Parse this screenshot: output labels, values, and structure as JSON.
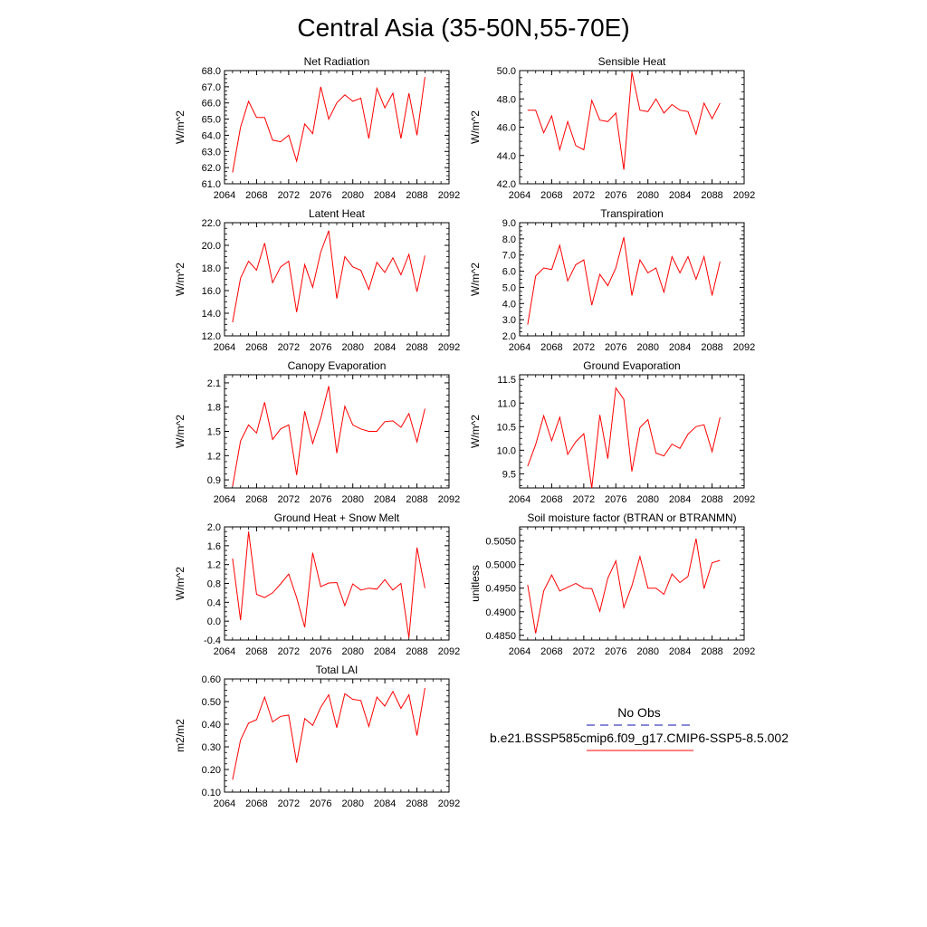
{
  "title": "Central Asia (35-50N,55-70E)",
  "xticks": [
    "2064",
    "2068",
    "2072",
    "2076",
    "2080",
    "2084",
    "2088",
    "2092"
  ],
  "years": [
    2065,
    2066,
    2067,
    2068,
    2069,
    2070,
    2071,
    2072,
    2073,
    2074,
    2075,
    2076,
    2077,
    2078,
    2079,
    2080,
    2081,
    2082,
    2083,
    2084,
    2085,
    2086,
    2087,
    2088,
    2089
  ],
  "legend": {
    "obs_label": "No Obs",
    "obs_color": "#4040c0",
    "model_label": "b.e21.BSSP585cmip6.f09_g17.CMIP6-SSP5-8.5.002",
    "model_color": "#ff0000"
  },
  "chart_data": [
    {
      "type": "line",
      "title": "Net Radiation",
      "ylabel": "W/m^2",
      "xlim": [
        2064,
        2092
      ],
      "ylim": [
        61.0,
        68.0
      ],
      "yticks": [
        "61.0",
        "62.0",
        "63.0",
        "64.0",
        "65.0",
        "66.0",
        "67.0",
        "68.0"
      ],
      "series": [
        {
          "values": [
            61.7,
            64.5,
            66.1,
            65.1,
            65.1,
            63.7,
            63.6,
            64.0,
            62.4,
            64.7,
            64.1,
            67.0,
            65.0,
            66.0,
            66.5,
            66.1,
            66.3,
            63.8,
            66.9,
            65.7,
            66.6,
            63.8,
            66.6,
            64.0,
            67.6
          ]
        }
      ]
    },
    {
      "type": "line",
      "title": "Sensible Heat",
      "ylabel": "W/m^2",
      "xlim": [
        2064,
        2092
      ],
      "ylim": [
        42.0,
        50.0
      ],
      "yticks": [
        "42.0",
        "44.0",
        "46.0",
        "48.0",
        "50.0"
      ],
      "series": [
        {
          "values": [
            47.2,
            47.2,
            45.6,
            46.8,
            44.4,
            46.4,
            44.7,
            44.4,
            47.9,
            46.5,
            46.4,
            47.0,
            43.0,
            49.9,
            47.2,
            47.1,
            48.0,
            47.0,
            47.6,
            47.2,
            47.1,
            45.5,
            47.7,
            46.6,
            47.7
          ]
        }
      ]
    },
    {
      "type": "line",
      "title": "Latent Heat",
      "ylabel": "W/m^2",
      "xlim": [
        2064,
        2092
      ],
      "ylim": [
        12.0,
        22.0
      ],
      "yticks": [
        "12.0",
        "14.0",
        "16.0",
        "18.0",
        "20.0",
        "22.0"
      ],
      "series": [
        {
          "values": [
            13.2,
            17.1,
            18.6,
            17.8,
            20.2,
            16.7,
            18.1,
            18.6,
            14.1,
            18.3,
            16.3,
            19.4,
            21.3,
            15.3,
            19.0,
            18.1,
            17.8,
            16.1,
            18.5,
            17.6,
            18.9,
            17.4,
            19.2,
            15.9,
            19.1
          ]
        }
      ]
    },
    {
      "type": "line",
      "title": "Transpiration",
      "ylabel": "W/m^2",
      "xlim": [
        2064,
        2092
      ],
      "ylim": [
        2.0,
        9.0
      ],
      "yticks": [
        "2.0",
        "3.0",
        "4.0",
        "5.0",
        "6.0",
        "7.0",
        "8.0",
        "9.0"
      ],
      "series": [
        {
          "values": [
            2.7,
            5.7,
            6.2,
            6.1,
            7.6,
            5.4,
            6.4,
            6.7,
            3.9,
            5.8,
            5.1,
            6.2,
            8.1,
            4.5,
            6.7,
            5.9,
            6.2,
            4.7,
            6.9,
            5.9,
            6.9,
            5.5,
            6.9,
            4.5,
            6.6
          ]
        }
      ]
    },
    {
      "type": "line",
      "title": "Canopy Evaporation",
      "ylabel": "W/m^2",
      "xlim": [
        2064,
        2092
      ],
      "ylim": [
        0.8,
        2.2
      ],
      "yticks": [
        "0.9",
        "1.2",
        "1.5",
        "1.8",
        "2.1"
      ],
      "series": [
        {
          "values": [
            0.82,
            1.38,
            1.58,
            1.48,
            1.86,
            1.4,
            1.53,
            1.58,
            0.96,
            1.75,
            1.35,
            1.66,
            2.06,
            1.23,
            1.81,
            1.58,
            1.53,
            1.5,
            1.5,
            1.62,
            1.63,
            1.55,
            1.72,
            1.37,
            1.78
          ]
        }
      ]
    },
    {
      "type": "line",
      "title": "Ground Evaporation",
      "ylabel": "W/m^2",
      "xlim": [
        2064,
        2092
      ],
      "ylim": [
        9.2,
        11.6
      ],
      "yticks": [
        "9.5",
        "10.0",
        "10.5",
        "11.0",
        "11.5"
      ],
      "series": [
        {
          "values": [
            9.66,
            10.12,
            10.73,
            10.2,
            10.7,
            9.91,
            10.18,
            10.35,
            9.2,
            10.75,
            9.82,
            11.32,
            11.08,
            9.55,
            10.48,
            10.65,
            9.94,
            9.88,
            10.13,
            10.04,
            10.34,
            10.5,
            10.54,
            9.97,
            10.7
          ]
        }
      ]
    },
    {
      "type": "line",
      "title": "Ground Heat + Snow Melt",
      "ylabel": "W/m^2",
      "xlim": [
        2064,
        2092
      ],
      "ylim": [
        -0.4,
        2.0
      ],
      "yticks": [
        "-0.4",
        "0.0",
        "0.4",
        "0.8",
        "1.2",
        "1.6",
        "2.0"
      ],
      "series": [
        {
          "values": [
            1.33,
            0.02,
            1.9,
            0.57,
            0.5,
            0.6,
            0.79,
            1.0,
            0.5,
            -0.13,
            1.45,
            0.73,
            0.81,
            0.82,
            0.33,
            0.79,
            0.66,
            0.7,
            0.68,
            0.88,
            0.66,
            0.8,
            -0.35,
            1.56,
            0.7
          ]
        }
      ]
    },
    {
      "type": "line",
      "title": "Soil moisture factor (BTRAN or BTRANMN)",
      "ylabel": "unitless",
      "xlim": [
        2064,
        2092
      ],
      "ylim": [
        0.484,
        0.508
      ],
      "yticks": [
        "0.4850",
        "0.4900",
        "0.4950",
        "0.5000",
        "0.5050"
      ],
      "series": [
        {
          "values": [
            0.4957,
            0.4854,
            0.4944,
            0.4978,
            0.4944,
            0.4952,
            0.496,
            0.495,
            0.4949,
            0.4901,
            0.4971,
            0.5008,
            0.4909,
            0.4955,
            0.5017,
            0.495,
            0.495,
            0.4937,
            0.498,
            0.4962,
            0.4975,
            0.5055,
            0.4949,
            0.5004,
            0.5009
          ]
        }
      ]
    },
    {
      "type": "line",
      "title": "Total LAI",
      "ylabel": "m2/m2",
      "xlim": [
        2064,
        2092
      ],
      "ylim": [
        0.1,
        0.6
      ],
      "yticks": [
        "0.10",
        "0.20",
        "0.30",
        "0.40",
        "0.50",
        "0.60"
      ],
      "series": [
        {
          "values": [
            0.155,
            0.33,
            0.405,
            0.42,
            0.52,
            0.41,
            0.435,
            0.44,
            0.23,
            0.425,
            0.395,
            0.475,
            0.53,
            0.385,
            0.535,
            0.51,
            0.505,
            0.39,
            0.52,
            0.48,
            0.545,
            0.47,
            0.53,
            0.35,
            0.56
          ]
        }
      ]
    }
  ]
}
